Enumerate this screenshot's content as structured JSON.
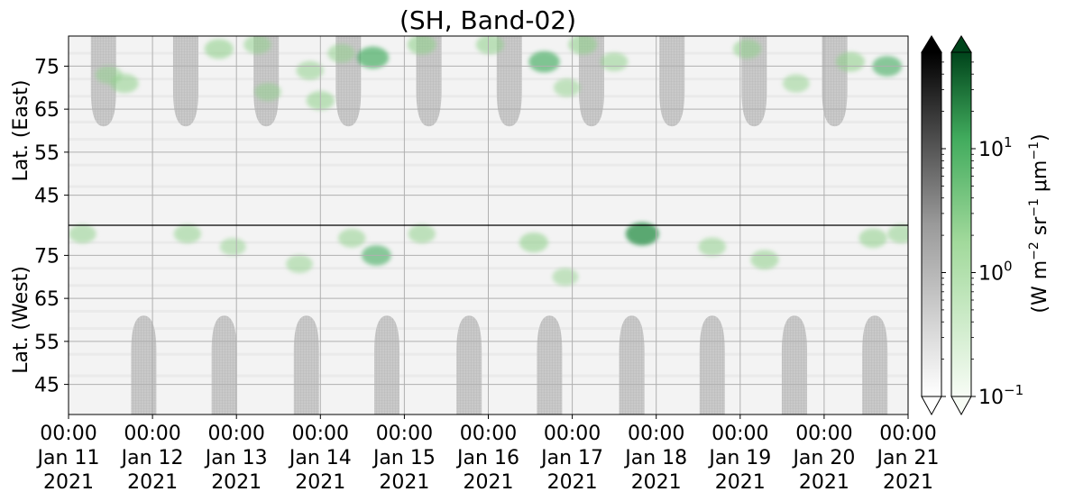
{
  "chart_data": {
    "type": "heatmap",
    "title": "(SH, Band-02)",
    "panels": [
      {
        "name": "east",
        "ylabel": "Lat. (East)",
        "yticks": [
          45,
          55,
          65,
          75
        ],
        "ylim": [
          38,
          82
        ],
        "y_direction": "increasing-upward"
      },
      {
        "name": "west",
        "ylabel": "Lat. (West)",
        "yticks": [
          75,
          65,
          55,
          45
        ],
        "ylim": [
          82,
          38
        ],
        "y_direction": "increasing-downward"
      }
    ],
    "x_ticks": [
      {
        "time": "00:00",
        "date": "Jan 11",
        "year": "2021"
      },
      {
        "time": "00:00",
        "date": "Jan 12",
        "year": "2021"
      },
      {
        "time": "00:00",
        "date": "Jan 13",
        "year": "2021"
      },
      {
        "time": "00:00",
        "date": "Jan 14",
        "year": "2021"
      },
      {
        "time": "00:00",
        "date": "Jan 15",
        "year": "2021"
      },
      {
        "time": "00:00",
        "date": "Jan 16",
        "year": "2021"
      },
      {
        "time": "00:00",
        "date": "Jan 17",
        "year": "2021"
      },
      {
        "time": "00:00",
        "date": "Jan 18",
        "year": "2021"
      },
      {
        "time": "00:00",
        "date": "Jan 19",
        "year": "2021"
      },
      {
        "time": "00:00",
        "date": "Jan 20",
        "year": "2021"
      },
      {
        "time": "00:00",
        "date": "Jan 21",
        "year": "2021"
      }
    ],
    "xlim": [
      "2021-01-11 00:00",
      "2021-01-21 00:00"
    ],
    "grid": true,
    "nodata_shading": {
      "color": "#c4c4c4",
      "east_centers": [
        "2021-01-11 10:00",
        "2021-01-12 09:30",
        "2021-01-13 08:30",
        "2021-01-14 08:00",
        "2021-01-15 07:00",
        "2021-01-16 06:00",
        "2021-01-17 05:30",
        "2021-01-18 04:30",
        "2021-01-19 04:00",
        "2021-01-20 03:00"
      ],
      "west_centers": [
        "2021-01-11 21:30",
        "2021-01-12 20:30",
        "2021-01-13 20:00",
        "2021-01-14 19:00",
        "2021-01-15 18:30",
        "2021-01-16 17:30",
        "2021-01-17 17:00",
        "2021-01-18 16:00",
        "2021-01-19 15:30",
        "2021-01-20 14:30"
      ],
      "min_lat": 61
    },
    "green_patches": [
      {
        "panel": "east",
        "time": "2021-01-11 11:30",
        "lat": 73,
        "intensity": 0.35
      },
      {
        "panel": "east",
        "time": "2021-01-11 16:00",
        "lat": 71,
        "intensity": 0.45
      },
      {
        "panel": "east",
        "time": "2021-01-12 19:00",
        "lat": 79,
        "intensity": 0.5
      },
      {
        "panel": "east",
        "time": "2021-01-13 06:00",
        "lat": 80,
        "intensity": 0.4
      },
      {
        "panel": "east",
        "time": "2021-01-13 09:00",
        "lat": 69,
        "intensity": 0.35
      },
      {
        "panel": "east",
        "time": "2021-01-13 21:00",
        "lat": 74,
        "intensity": 0.4
      },
      {
        "panel": "east",
        "time": "2021-01-14 00:00",
        "lat": 67,
        "intensity": 0.45
      },
      {
        "panel": "east",
        "time": "2021-01-14 06:00",
        "lat": 78,
        "intensity": 0.4
      },
      {
        "panel": "east",
        "time": "2021-01-14 15:00",
        "lat": 77,
        "intensity": 0.7
      },
      {
        "panel": "east",
        "time": "2021-01-15 05:00",
        "lat": 80,
        "intensity": 0.5
      },
      {
        "panel": "east",
        "time": "2021-01-16 00:30",
        "lat": 80,
        "intensity": 0.45
      },
      {
        "panel": "east",
        "time": "2021-01-16 16:00",
        "lat": 76,
        "intensity": 0.65
      },
      {
        "panel": "east",
        "time": "2021-01-16 22:30",
        "lat": 70,
        "intensity": 0.35
      },
      {
        "panel": "east",
        "time": "2021-01-17 03:00",
        "lat": 80,
        "intensity": 0.5
      },
      {
        "panel": "east",
        "time": "2021-01-17 12:00",
        "lat": 76,
        "intensity": 0.4
      },
      {
        "panel": "east",
        "time": "2021-01-19 02:00",
        "lat": 79,
        "intensity": 0.45
      },
      {
        "panel": "east",
        "time": "2021-01-19 16:00",
        "lat": 71,
        "intensity": 0.35
      },
      {
        "panel": "east",
        "time": "2021-01-20 07:30",
        "lat": 76,
        "intensity": 0.5
      },
      {
        "panel": "east",
        "time": "2021-01-20 18:00",
        "lat": 75,
        "intensity": 0.55
      },
      {
        "panel": "west",
        "time": "2021-01-11 04:00",
        "lat": 80,
        "intensity": 0.4
      },
      {
        "panel": "west",
        "time": "2021-01-12 10:00",
        "lat": 80,
        "intensity": 0.4
      },
      {
        "panel": "west",
        "time": "2021-01-12 23:00",
        "lat": 77,
        "intensity": 0.3
      },
      {
        "panel": "west",
        "time": "2021-01-13 18:00",
        "lat": 73,
        "intensity": 0.35
      },
      {
        "panel": "west",
        "time": "2021-01-14 09:00",
        "lat": 79,
        "intensity": 0.4
      },
      {
        "panel": "west",
        "time": "2021-01-14 16:00",
        "lat": 75,
        "intensity": 0.55
      },
      {
        "panel": "west",
        "time": "2021-01-15 05:00",
        "lat": 80,
        "intensity": 0.4
      },
      {
        "panel": "west",
        "time": "2021-01-16 13:00",
        "lat": 78,
        "intensity": 0.5
      },
      {
        "panel": "west",
        "time": "2021-01-16 22:00",
        "lat": 70,
        "intensity": 0.3
      },
      {
        "panel": "west",
        "time": "2021-01-17 20:00",
        "lat": 80,
        "intensity": 0.8
      },
      {
        "panel": "west",
        "time": "2021-01-18 16:00",
        "lat": 77,
        "intensity": 0.4
      },
      {
        "panel": "west",
        "time": "2021-01-19 07:00",
        "lat": 74,
        "intensity": 0.45
      },
      {
        "panel": "west",
        "time": "2021-01-20 14:00",
        "lat": 79,
        "intensity": 0.45
      },
      {
        "panel": "west",
        "time": "2021-01-20 22:00",
        "lat": 80,
        "intensity": 0.4
      }
    ],
    "colorbars": [
      {
        "name": "gray",
        "colors": [
          "#ffffff",
          "#8a8a8a",
          "#000000"
        ],
        "extend": "both"
      },
      {
        "name": "green",
        "colors": [
          "#f7fcf5",
          "#74c476",
          "#00441b"
        ],
        "extend": "both"
      }
    ],
    "colorbar_scale": "log",
    "colorbar_range": [
      0.1,
      60
    ],
    "colorbar_ticks": [
      {
        "value": 0.1,
        "base": "10",
        "exp": "−1"
      },
      {
        "value": 1,
        "base": "10",
        "exp": "0"
      },
      {
        "value": 10,
        "base": "10",
        "exp": "1"
      }
    ],
    "colorbar_label": {
      "main": "(W m",
      "e1": "−2",
      "mid": " sr",
      "e2": "−1",
      "mu": " μm",
      "e3": "−1",
      "end": ")"
    }
  }
}
